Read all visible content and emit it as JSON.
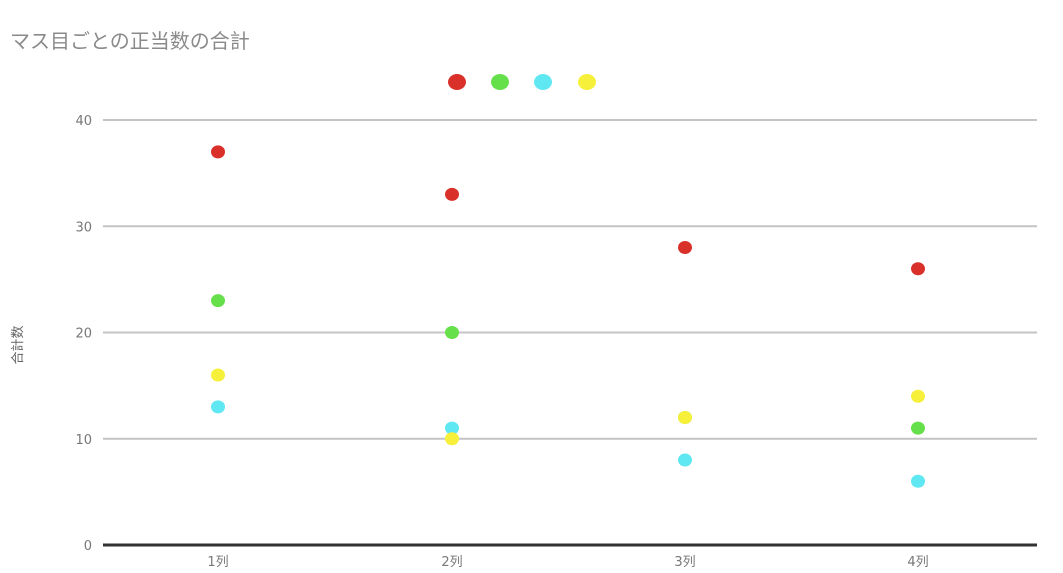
{
  "chart_data": {
    "type": "scatter",
    "title": "マス目ごとの正当数の合計",
    "xlabel": "",
    "ylabel": "合計数",
    "categories": [
      "1列",
      "2列",
      "3列",
      "4列"
    ],
    "ylim": [
      0,
      40
    ],
    "yticks": [
      0,
      10,
      20,
      30,
      40
    ],
    "grid": true,
    "legend_position": "top",
    "series": [
      {
        "color": "#d9302a",
        "values": [
          37,
          33,
          28,
          26
        ]
      },
      {
        "color": "#66e04a",
        "values": [
          23,
          20,
          12,
          11
        ]
      },
      {
        "color": "#5fe8f2",
        "values": [
          13,
          11,
          8,
          6
        ]
      },
      {
        "color": "#f7f03a",
        "values": [
          16,
          10,
          12,
          14
        ]
      }
    ]
  }
}
